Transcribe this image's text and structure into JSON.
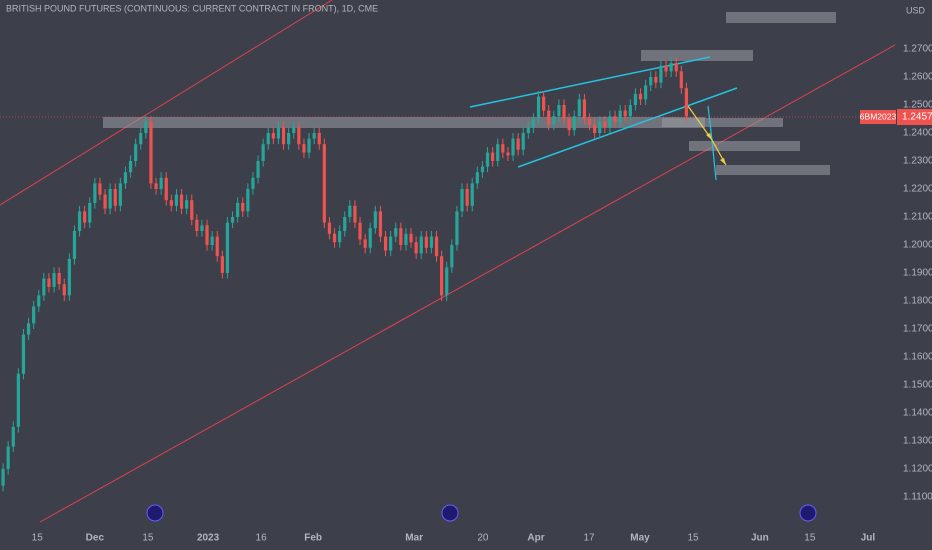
{
  "chart_data": {
    "type": "candlestick",
    "title": "BRITISH POUND FUTURES (CONTINUOUS: CURRENT CONTRACT IN FRONT), 1D, CME",
    "currency": "USD",
    "symbol": "6BM2023",
    "last_price": 1.2457,
    "up_color": "#26a69a",
    "down_color": "#ef5350",
    "open": [
      1.114,
      1.12,
      1.128,
      1.135,
      1.154,
      1.168,
      1.172,
      1.178,
      1.182,
      1.188,
      1.185,
      1.19,
      1.186,
      1.182,
      1.195,
      1.205,
      1.212,
      1.208,
      1.215,
      1.222,
      1.218,
      1.213,
      1.22,
      1.214,
      1.222,
      1.226,
      1.23,
      1.236,
      1.24,
      1.244,
      1.222,
      1.22,
      1.224,
      1.216,
      1.214,
      1.218,
      1.213,
      1.216,
      1.209,
      1.205,
      1.207,
      1.2,
      1.203,
      1.196,
      1.19,
      1.208,
      1.21,
      1.215,
      1.212,
      1.22,
      1.224,
      1.23,
      1.236,
      1.24,
      1.238,
      1.242,
      1.236,
      1.24,
      1.242,
      1.236,
      1.233,
      1.238,
      1.24,
      1.236,
      1.208,
      1.204,
      1.201,
      1.205,
      1.21,
      1.214,
      1.208,
      1.202,
      1.199,
      1.206,
      1.212,
      1.203,
      1.198,
      1.203,
      1.206,
      1.2,
      1.204,
      1.201,
      1.197,
      1.203,
      1.199,
      1.203,
      1.196,
      1.182,
      1.192,
      1.2,
      1.212,
      1.22,
      1.214,
      1.222,
      1.226,
      1.228,
      1.233,
      1.23,
      1.236,
      1.233,
      1.232,
      1.238,
      1.234,
      1.24,
      1.242,
      1.245,
      1.253,
      1.248,
      1.243,
      1.246,
      1.25,
      1.245,
      1.241,
      1.246,
      1.252,
      1.245,
      1.243,
      1.24,
      1.244,
      1.242,
      1.246,
      1.244,
      1.248,
      1.246,
      1.25,
      1.254,
      1.252,
      1.257,
      1.26,
      1.258,
      1.264,
      1.262,
      1.265,
      1.262,
      1.256
    ],
    "high": [
      1.122,
      1.13,
      1.137,
      1.156,
      1.17,
      1.174,
      1.18,
      1.184,
      1.19,
      1.19,
      1.192,
      1.192,
      1.188,
      1.197,
      1.207,
      1.214,
      1.214,
      1.217,
      1.224,
      1.224,
      1.22,
      1.222,
      1.222,
      1.224,
      1.228,
      1.232,
      1.238,
      1.242,
      1.246,
      1.246,
      1.224,
      1.226,
      1.226,
      1.218,
      1.22,
      1.22,
      1.218,
      1.218,
      1.211,
      1.209,
      1.209,
      1.205,
      1.205,
      1.198,
      1.21,
      1.212,
      1.217,
      1.217,
      1.222,
      1.226,
      1.232,
      1.238,
      1.242,
      1.242,
      1.244,
      1.244,
      1.242,
      1.244,
      1.244,
      1.238,
      1.24,
      1.242,
      1.242,
      1.238,
      1.21,
      1.206,
      1.207,
      1.212,
      1.216,
      1.216,
      1.21,
      1.204,
      1.208,
      1.214,
      1.214,
      1.205,
      1.205,
      1.208,
      1.208,
      1.206,
      1.206,
      1.203,
      1.205,
      1.205,
      1.205,
      1.205,
      1.198,
      1.194,
      1.202,
      1.214,
      1.222,
      1.222,
      1.224,
      1.228,
      1.23,
      1.235,
      1.235,
      1.238,
      1.238,
      1.235,
      1.24,
      1.24,
      1.242,
      1.244,
      1.247,
      1.255,
      1.255,
      1.25,
      1.248,
      1.252,
      1.252,
      1.247,
      1.248,
      1.254,
      1.254,
      1.247,
      1.245,
      1.246,
      1.246,
      1.248,
      1.248,
      1.25,
      1.25,
      1.252,
      1.256,
      1.256,
      1.259,
      1.262,
      1.262,
      1.266,
      1.266,
      1.267,
      1.267,
      1.264,
      1.258
    ],
    "low": [
      1.112,
      1.118,
      1.126,
      1.133,
      1.152,
      1.166,
      1.17,
      1.176,
      1.18,
      1.183,
      1.183,
      1.184,
      1.18,
      1.18,
      1.193,
      1.203,
      1.206,
      1.206,
      1.213,
      1.216,
      1.211,
      1.211,
      1.212,
      1.212,
      1.22,
      1.224,
      1.228,
      1.234,
      1.238,
      1.22,
      1.218,
      1.218,
      1.214,
      1.212,
      1.212,
      1.211,
      1.211,
      1.207,
      1.203,
      1.203,
      1.198,
      1.198,
      1.194,
      1.188,
      1.188,
      1.206,
      1.208,
      1.21,
      1.21,
      1.218,
      1.222,
      1.228,
      1.234,
      1.236,
      1.236,
      1.234,
      1.234,
      1.238,
      1.234,
      1.231,
      1.231,
      1.236,
      1.234,
      1.206,
      1.202,
      1.199,
      1.199,
      1.203,
      1.208,
      1.206,
      1.2,
      1.197,
      1.197,
      1.204,
      1.201,
      1.196,
      1.196,
      1.201,
      1.198,
      1.198,
      1.199,
      1.195,
      1.195,
      1.197,
      1.197,
      1.194,
      1.18,
      1.18,
      1.19,
      1.198,
      1.21,
      1.212,
      1.212,
      1.22,
      1.224,
      1.226,
      1.228,
      1.228,
      1.231,
      1.23,
      1.23,
      1.232,
      1.232,
      1.238,
      1.24,
      1.243,
      1.246,
      1.241,
      1.241,
      1.244,
      1.243,
      1.239,
      1.239,
      1.244,
      1.243,
      1.241,
      1.238,
      1.238,
      1.24,
      1.24,
      1.242,
      1.242,
      1.244,
      1.244,
      1.248,
      1.25,
      1.25,
      1.255,
      1.256,
      1.256,
      1.26,
      1.26,
      1.26,
      1.254,
      1.244
    ],
    "close": [
      1.12,
      1.128,
      1.135,
      1.154,
      1.168,
      1.172,
      1.178,
      1.182,
      1.188,
      1.185,
      1.19,
      1.186,
      1.182,
      1.195,
      1.205,
      1.212,
      1.208,
      1.215,
      1.222,
      1.218,
      1.213,
      1.22,
      1.214,
      1.222,
      1.226,
      1.23,
      1.236,
      1.24,
      1.244,
      1.222,
      1.22,
      1.224,
      1.216,
      1.214,
      1.218,
      1.213,
      1.216,
      1.209,
      1.205,
      1.207,
      1.2,
      1.203,
      1.196,
      1.19,
      1.208,
      1.21,
      1.215,
      1.212,
      1.22,
      1.224,
      1.23,
      1.236,
      1.24,
      1.238,
      1.242,
      1.236,
      1.24,
      1.242,
      1.236,
      1.233,
      1.238,
      1.24,
      1.236,
      1.208,
      1.204,
      1.201,
      1.205,
      1.21,
      1.214,
      1.208,
      1.202,
      1.199,
      1.206,
      1.212,
      1.203,
      1.198,
      1.203,
      1.206,
      1.2,
      1.204,
      1.201,
      1.197,
      1.203,
      1.199,
      1.203,
      1.196,
      1.182,
      1.192,
      1.2,
      1.212,
      1.22,
      1.214,
      1.222,
      1.226,
      1.228,
      1.233,
      1.23,
      1.236,
      1.233,
      1.232,
      1.238,
      1.234,
      1.24,
      1.242,
      1.245,
      1.253,
      1.248,
      1.243,
      1.246,
      1.25,
      1.245,
      1.241,
      1.246,
      1.252,
      1.245,
      1.243,
      1.24,
      1.244,
      1.242,
      1.246,
      1.244,
      1.248,
      1.246,
      1.25,
      1.254,
      1.252,
      1.257,
      1.26,
      1.258,
      1.264,
      1.262,
      1.265,
      1.262,
      1.256,
      1.246
    ],
    "xlim": [
      -0.6,
      174.9
    ],
    "xticks": [
      {
        "value": 6.7,
        "label": "15"
      },
      {
        "value": 18,
        "label": "Dec"
      },
      {
        "value": 28.4,
        "label": "15"
      },
      {
        "value": 40.2,
        "label": "2023"
      },
      {
        "value": 50.6,
        "label": "16"
      },
      {
        "value": 60.8,
        "label": "Feb"
      },
      {
        "value": 80.6,
        "label": "Mar"
      },
      {
        "value": 94.1,
        "label": "20"
      },
      {
        "value": 104.5,
        "label": "Apr"
      },
      {
        "value": 114.9,
        "label": "17"
      },
      {
        "value": 124.9,
        "label": "May"
      },
      {
        "value": 135.3,
        "label": "15"
      },
      {
        "value": 148.4,
        "label": "Jun"
      },
      {
        "value": 158.2,
        "label": "15"
      },
      {
        "value": 169.6,
        "label": "Jul"
      }
    ],
    "ylim": [
      1.0982,
      1.2875
    ],
    "yticks": [
      {
        "value": 1.11,
        "label": "1.1100"
      },
      {
        "value": 1.12,
        "label": "1.1200"
      },
      {
        "value": 1.13,
        "label": "1.1300"
      },
      {
        "value": 1.14,
        "label": "1.1400"
      },
      {
        "value": 1.15,
        "label": "1.1500"
      },
      {
        "value": 1.16,
        "label": "1.1600"
      },
      {
        "value": 1.17,
        "label": "1.1700"
      },
      {
        "value": 1.18,
        "label": "1.1800"
      },
      {
        "value": 1.19,
        "label": "1.1900"
      },
      {
        "value": 1.2,
        "label": "1.2000"
      },
      {
        "value": 1.21,
        "label": "1.2100"
      },
      {
        "value": 1.22,
        "label": "1.2200"
      },
      {
        "value": 1.23,
        "label": "1.2300"
      },
      {
        "value": 1.24,
        "label": "1.2400"
      },
      {
        "value": 1.25,
        "label": "1.2500"
      },
      {
        "value": 1.26,
        "label": "1.2600"
      },
      {
        "value": 1.27,
        "label": "1.2700"
      }
    ],
    "grid": false
  }
}
